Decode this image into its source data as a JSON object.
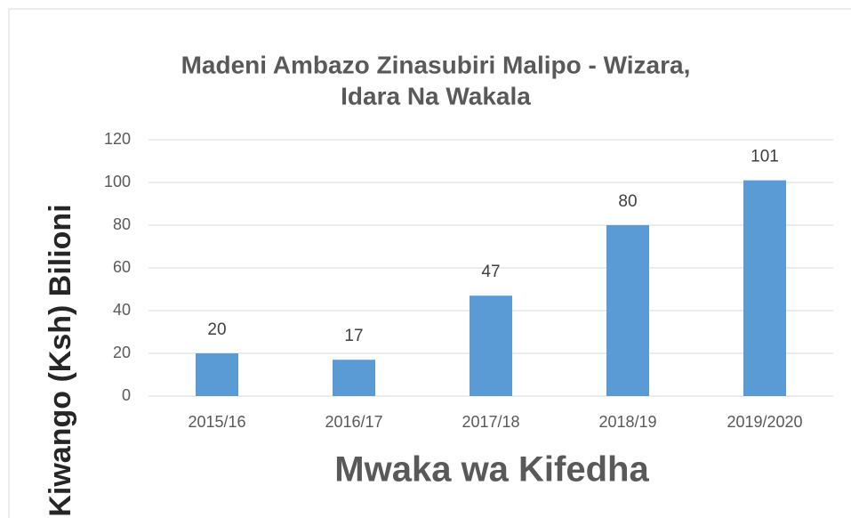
{
  "chart_data": {
    "type": "bar",
    "title": [
      "Madeni Ambazo Zinasubiri Malipo -  Wizara,",
      "Idara Na Wakala"
    ],
    "x_label": "Mwaka wa Kifedha",
    "y_label": "Kiwango (Ksh) Bilioni",
    "categories": [
      "2015/16",
      "2016/17",
      "2017/18",
      "2018/19",
      "2019/2020"
    ],
    "values": [
      20,
      17,
      47,
      80,
      101
    ],
    "color": "#5b9bd5",
    "ylim": [
      0,
      120
    ],
    "yticks": [
      0,
      20,
      40,
      60,
      80,
      100,
      120
    ],
    "grid": true
  }
}
